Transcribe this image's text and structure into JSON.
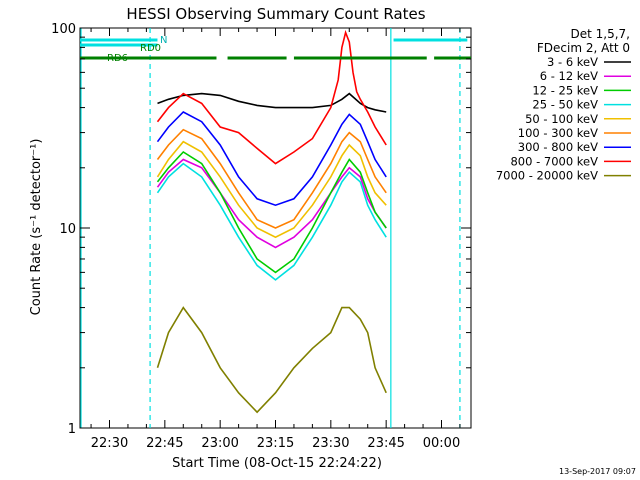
{
  "chart_data": {
    "type": "line",
    "title": "HESSI Observing Summary Count Rates",
    "xlabel": "Start Time (08-Oct-15 22:24:22)",
    "ylabel": "Count Rate (s⁻¹ detector⁻¹)",
    "yscale": "log",
    "ylim": [
      1,
      100
    ],
    "xlim_minutes": [
      -8,
      98
    ],
    "x_ticks": [
      {
        "label": "22:30",
        "minute": 0
      },
      {
        "label": "22:45",
        "minute": 15
      },
      {
        "label": "23:00",
        "minute": 30
      },
      {
        "label": "23:15",
        "minute": 45
      },
      {
        "label": "23:30",
        "minute": 60
      },
      {
        "label": "23:45",
        "minute": 75
      },
      {
        "label": "00:00",
        "minute": 90
      }
    ],
    "y_ticks": [
      {
        "label": "1",
        "value": 1
      },
      {
        "label": "10",
        "value": 10
      },
      {
        "label": "100",
        "value": 100
      }
    ],
    "legend": {
      "placement": "right",
      "header": [
        "Det 1,5,7,",
        "FDecim 2, Att 0"
      ]
    },
    "series": [
      {
        "name": "3 - 6 keV",
        "color": "#000000",
        "x": [
          13,
          16,
          20,
          25,
          30,
          35,
          40,
          45,
          50,
          55,
          60,
          63,
          65,
          68,
          70,
          72,
          75
        ],
        "y": [
          42,
          44,
          46,
          47,
          46,
          43,
          41,
          40,
          40,
          40,
          41,
          44,
          47,
          42,
          40,
          39,
          38
        ]
      },
      {
        "name": "6 - 12 keV",
        "color": "#e000e0",
        "x": [
          13,
          16,
          20,
          25,
          30,
          35,
          40,
          45,
          50,
          55,
          60,
          63,
          65,
          68,
          70,
          72,
          75
        ],
        "y": [
          16,
          19,
          22,
          20,
          15,
          11,
          9,
          8,
          9,
          11,
          15,
          18,
          20,
          18,
          14,
          12,
          10
        ]
      },
      {
        "name": "12 - 25 keV",
        "color": "#00cc00",
        "x": [
          13,
          16,
          20,
          25,
          30,
          35,
          40,
          45,
          50,
          55,
          60,
          63,
          65,
          68,
          70,
          72,
          75
        ],
        "y": [
          17,
          20,
          24,
          21,
          15,
          10,
          7,
          6,
          7,
          10,
          15,
          19,
          22,
          19,
          15,
          12,
          10
        ]
      },
      {
        "name": "25 - 50 keV",
        "color": "#00e0e0",
        "x": [
          13,
          16,
          20,
          25,
          30,
          35,
          40,
          45,
          50,
          55,
          60,
          63,
          65,
          68,
          70,
          72,
          75
        ],
        "y": [
          15,
          18,
          21,
          18,
          13,
          9,
          6.5,
          5.5,
          6.5,
          9,
          13,
          17,
          19,
          17,
          13,
          11,
          9
        ]
      },
      {
        "name": "50 - 100 keV",
        "color": "#f0c000",
        "x": [
          13,
          16,
          20,
          25,
          30,
          35,
          40,
          45,
          50,
          55,
          60,
          63,
          65,
          68,
          70,
          72,
          75
        ],
        "y": [
          18,
          22,
          27,
          24,
          18,
          13,
          10,
          9,
          10,
          13,
          18,
          23,
          26,
          23,
          18,
          15,
          13
        ]
      },
      {
        "name": "100 - 300 keV",
        "color": "#ff8000",
        "x": [
          13,
          16,
          20,
          25,
          30,
          35,
          40,
          45,
          50,
          55,
          60,
          63,
          65,
          68,
          70,
          72,
          75
        ],
        "y": [
          22,
          26,
          31,
          28,
          21,
          15,
          11,
          10,
          11,
          15,
          21,
          27,
          30,
          27,
          22,
          18,
          15
        ]
      },
      {
        "name": "300 - 800 keV",
        "color": "#0000ff",
        "x": [
          13,
          16,
          20,
          25,
          30,
          35,
          40,
          45,
          50,
          55,
          60,
          63,
          65,
          68,
          70,
          72,
          75
        ],
        "y": [
          27,
          32,
          38,
          34,
          26,
          18,
          14,
          13,
          14,
          18,
          26,
          33,
          37,
          33,
          27,
          22,
          18
        ]
      },
      {
        "name": "800 - 7000 keV",
        "color": "#ff0000",
        "x": [
          13,
          16,
          20,
          25,
          30,
          35,
          40,
          45,
          50,
          55,
          60,
          62,
          63,
          64,
          65,
          66,
          67,
          68,
          70,
          72,
          75
        ],
        "y": [
          34,
          40,
          47,
          42,
          32,
          30,
          25,
          21,
          24,
          28,
          40,
          55,
          80,
          95,
          85,
          60,
          48,
          44,
          38,
          32,
          26
        ]
      },
      {
        "name": "7000 - 20000 keV",
        "color": "#808000",
        "x": [
          13,
          16,
          20,
          25,
          30,
          35,
          40,
          45,
          50,
          55,
          60,
          63,
          65,
          68,
          70,
          72,
          75
        ],
        "y": [
          2,
          3,
          4,
          3,
          2,
          1.5,
          1.2,
          1.5,
          2,
          2.5,
          3,
          4,
          4,
          3.5,
          3,
          2,
          1.5
        ]
      }
    ],
    "flags": [
      {
        "name": "RD0",
        "color": "#00e0e0",
        "segments": [
          [
            -8,
            13
          ]
        ]
      },
      {
        "name": "N",
        "color": "#00e0e0",
        "segments": [
          [
            -8,
            13
          ],
          [
            77,
            97
          ]
        ]
      },
      {
        "name": "RD6",
        "color": "#008000",
        "segments": [
          [
            -8,
            29
          ],
          [
            32,
            48
          ],
          [
            50,
            86
          ],
          [
            88,
            98
          ]
        ]
      }
    ],
    "boundary_lines": {
      "cyan_solid_minutes": [
        -8,
        76
      ],
      "cyan_dashed_minutes": [
        11,
        95
      ],
      "color": "#00e0e0"
    }
  },
  "footer": {
    "date": "13-Sep-2017 09:07"
  }
}
